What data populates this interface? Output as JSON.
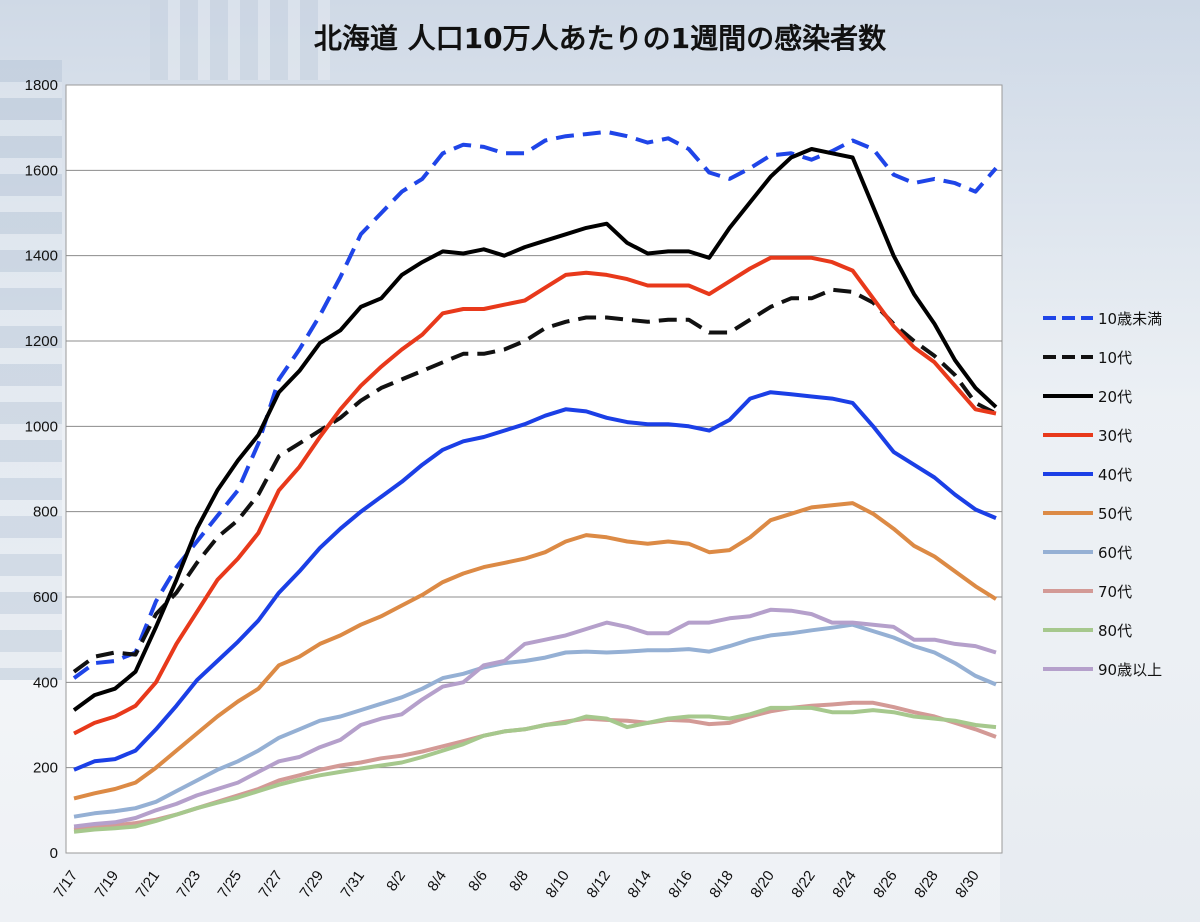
{
  "chart_data": {
    "type": "line",
    "title": "北海道 人口10万人あたりの1週間の感染者数",
    "xlabel": "",
    "ylabel": "",
    "ylim": [
      0,
      1800
    ],
    "yticks": [
      0,
      200,
      400,
      600,
      800,
      1000,
      1200,
      1400,
      1600,
      1800
    ],
    "grid": true,
    "legend_position": "right",
    "x": [
      "7/17",
      "7/18",
      "7/19",
      "7/20",
      "7/21",
      "7/22",
      "7/23",
      "7/24",
      "7/25",
      "7/26",
      "7/27",
      "7/28",
      "7/29",
      "7/30",
      "7/31",
      "8/1",
      "8/2",
      "8/3",
      "8/4",
      "8/5",
      "8/6",
      "8/7",
      "8/8",
      "8/9",
      "8/10",
      "8/11",
      "8/12",
      "8/13",
      "8/14",
      "8/15",
      "8/16",
      "8/17",
      "8/18",
      "8/19",
      "8/20",
      "8/21",
      "8/22",
      "8/23",
      "8/24",
      "8/25",
      "8/26",
      "8/27",
      "8/28",
      "8/29",
      "8/30",
      "8/31"
    ],
    "xtick_labels": [
      "7/17",
      "7/19",
      "7/21",
      "7/23",
      "7/25",
      "7/27",
      "7/29",
      "7/31",
      "8/2",
      "8/4",
      "8/6",
      "8/8",
      "8/10",
      "8/12",
      "8/14",
      "8/16",
      "8/18",
      "8/20",
      "8/22",
      "8/24",
      "8/26",
      "8/28",
      "8/30"
    ],
    "series": [
      {
        "name": "10歳未満",
        "color": "#1f45e8",
        "dash": "dashed",
        "values": [
          410,
          445,
          450,
          470,
          590,
          670,
          730,
          790,
          850,
          960,
          1110,
          1180,
          1260,
          1350,
          1450,
          1500,
          1550,
          1580,
          1640,
          1660,
          1655,
          1640,
          1640,
          1670,
          1680,
          1685,
          1690,
          1680,
          1665,
          1675,
          1650,
          1595,
          1580,
          1605,
          1635,
          1640,
          1625,
          1645,
          1670,
          1650,
          1590,
          1570,
          1580,
          1570,
          1550,
          1605
        ]
      },
      {
        "name": "10代",
        "color": "#111111",
        "dash": "dashed",
        "values": [
          425,
          460,
          470,
          465,
          560,
          610,
          680,
          740,
          780,
          840,
          930,
          960,
          990,
          1020,
          1060,
          1090,
          1110,
          1130,
          1150,
          1170,
          1170,
          1180,
          1200,
          1230,
          1245,
          1255,
          1255,
          1250,
          1245,
          1250,
          1250,
          1220,
          1220,
          1250,
          1280,
          1300,
          1300,
          1320,
          1315,
          1290,
          1240,
          1200,
          1165,
          1120,
          1055,
          1030
        ]
      },
      {
        "name": "20代",
        "color": "#000000",
        "dash": "solid",
        "values": [
          335,
          370,
          385,
          425,
          530,
          640,
          760,
          850,
          920,
          980,
          1080,
          1130,
          1195,
          1225,
          1280,
          1300,
          1355,
          1385,
          1410,
          1405,
          1415,
          1400,
          1420,
          1435,
          1450,
          1465,
          1475,
          1430,
          1405,
          1410,
          1410,
          1395,
          1465,
          1525,
          1585,
          1630,
          1650,
          1640,
          1630,
          1515,
          1400,
          1310,
          1240,
          1155,
          1090,
          1045
        ]
      },
      {
        "name": "30代",
        "color": "#e8391b",
        "dash": "solid",
        "values": [
          280,
          305,
          320,
          345,
          400,
          490,
          565,
          640,
          690,
          750,
          850,
          905,
          975,
          1040,
          1095,
          1140,
          1180,
          1215,
          1265,
          1275,
          1275,
          1285,
          1295,
          1325,
          1355,
          1360,
          1355,
          1345,
          1330,
          1330,
          1330,
          1310,
          1340,
          1370,
          1395,
          1395,
          1395,
          1385,
          1365,
          1300,
          1235,
          1185,
          1150,
          1095,
          1040,
          1030
        ]
      },
      {
        "name": "40代",
        "color": "#1b3fe6",
        "dash": "solid",
        "values": [
          195,
          215,
          220,
          240,
          290,
          345,
          405,
          450,
          495,
          545,
          610,
          660,
          715,
          760,
          800,
          835,
          870,
          910,
          945,
          965,
          975,
          990,
          1005,
          1025,
          1040,
          1035,
          1020,
          1010,
          1005,
          1005,
          1000,
          990,
          1015,
          1065,
          1080,
          1075,
          1070,
          1065,
          1055,
          1000,
          940,
          910,
          880,
          840,
          805,
          785
        ]
      },
      {
        "name": "50代",
        "color": "#dc8a45",
        "dash": "solid",
        "values": [
          128,
          140,
          150,
          165,
          200,
          240,
          280,
          320,
          355,
          385,
          440,
          460,
          490,
          510,
          535,
          555,
          580,
          605,
          635,
          655,
          670,
          680,
          690,
          705,
          730,
          745,
          740,
          730,
          725,
          730,
          725,
          705,
          710,
          740,
          780,
          795,
          810,
          815,
          820,
          795,
          760,
          720,
          695,
          660,
          625,
          595
        ]
      },
      {
        "name": "60代",
        "color": "#95b0d4",
        "dash": "solid",
        "values": [
          85,
          93,
          98,
          105,
          120,
          145,
          170,
          195,
          215,
          240,
          270,
          290,
          310,
          320,
          335,
          350,
          365,
          385,
          410,
          420,
          435,
          445,
          450,
          458,
          470,
          472,
          470,
          472,
          475,
          475,
          478,
          472,
          485,
          500,
          510,
          515,
          522,
          528,
          535,
          520,
          505,
          485,
          470,
          445,
          415,
          395
        ]
      },
      {
        "name": "70代",
        "color": "#d39a96",
        "dash": "solid",
        "values": [
          55,
          60,
          65,
          70,
          78,
          90,
          105,
          120,
          135,
          150,
          170,
          182,
          195,
          205,
          212,
          222,
          228,
          238,
          250,
          262,
          275,
          285,
          290,
          300,
          308,
          315,
          312,
          310,
          305,
          312,
          310,
          302,
          305,
          320,
          332,
          340,
          345,
          348,
          352,
          352,
          342,
          330,
          320,
          305,
          290,
          272
        ]
      },
      {
        "name": "80代",
        "color": "#a6c88d",
        "dash": "solid",
        "values": [
          50,
          55,
          58,
          62,
          75,
          90,
          105,
          118,
          130,
          145,
          160,
          172,
          182,
          190,
          198,
          205,
          212,
          225,
          240,
          255,
          275,
          285,
          290,
          300,
          305,
          320,
          315,
          295,
          305,
          315,
          320,
          320,
          315,
          325,
          340,
          340,
          340,
          330,
          330,
          335,
          330,
          320,
          315,
          310,
          300,
          295
        ]
      },
      {
        "name": "90歳以上",
        "color": "#b5a0cb",
        "dash": "solid",
        "values": [
          62,
          68,
          72,
          82,
          100,
          115,
          135,
          150,
          165,
          190,
          215,
          225,
          248,
          265,
          300,
          315,
          325,
          360,
          390,
          400,
          440,
          450,
          490,
          500,
          510,
          525,
          540,
          530,
          515,
          515,
          540,
          540,
          550,
          555,
          570,
          568,
          560,
          540,
          540,
          535,
          530,
          500,
          500,
          490,
          485,
          470
        ]
      }
    ]
  }
}
